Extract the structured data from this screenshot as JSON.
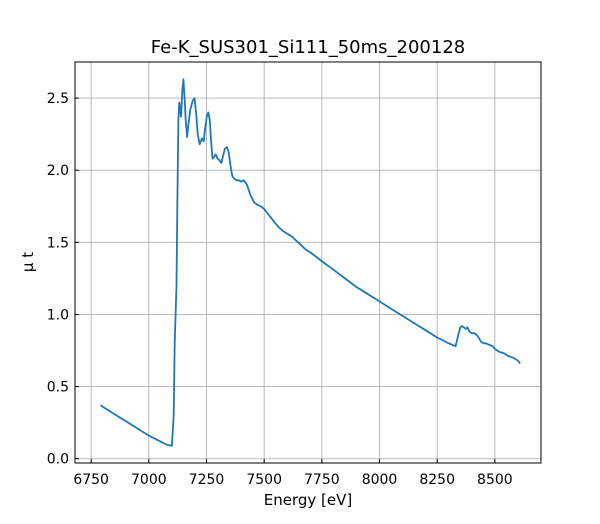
{
  "chart_data": {
    "type": "line",
    "title": "Fe-K_SUS301_Si111_50ms_200128",
    "xlabel": "Energy [eV]",
    "ylabel": "μ t",
    "xlim": [
      6680,
      8700
    ],
    "ylim": [
      -0.03,
      2.75
    ],
    "xticks": [
      6750,
      7000,
      7250,
      7500,
      7750,
      8000,
      8250,
      8500
    ],
    "yticks": [
      0.0,
      0.5,
      1.0,
      1.5,
      2.0,
      2.5
    ],
    "xtick_labels": [
      "6750",
      "7000",
      "7250",
      "7500",
      "7750",
      "8000",
      "8250",
      "8500"
    ],
    "ytick_labels": [
      "0.0",
      "0.5",
      "1.0",
      "1.5",
      "2.0",
      "2.5"
    ],
    "grid": true,
    "tick_direction": "in",
    "series": [
      {
        "color": "#1f77b4",
        "x": [
          6790,
          6850,
          6900,
          6950,
          7000,
          7050,
          7080,
          7100,
          7108,
          7112,
          7116,
          7120,
          7124,
          7128,
          7132,
          7136,
          7140,
          7145,
          7150,
          7155,
          7160,
          7166,
          7172,
          7180,
          7190,
          7198,
          7205,
          7212,
          7220,
          7230,
          7238,
          7245,
          7252,
          7258,
          7264,
          7270,
          7276,
          7282,
          7290,
          7298,
          7306,
          7314,
          7322,
          7330,
          7338,
          7346,
          7354,
          7362,
          7370,
          7380,
          7390,
          7400,
          7412,
          7425,
          7440,
          7455,
          7470,
          7485,
          7500,
          7520,
          7540,
          7560,
          7580,
          7600,
          7620,
          7640,
          7660,
          7680,
          7700,
          7750,
          7800,
          7850,
          7900,
          7950,
          8000,
          8050,
          8100,
          8150,
          8200,
          8250,
          8300,
          8330,
          8340,
          8350,
          8358,
          8366,
          8374,
          8382,
          8390,
          8400,
          8410,
          8420,
          8430,
          8440,
          8450,
          8460,
          8475,
          8490,
          8500,
          8510,
          8520,
          8540,
          8560,
          8580,
          8600,
          8610
        ],
        "y": [
          0.37,
          0.31,
          0.26,
          0.21,
          0.16,
          0.12,
          0.095,
          0.09,
          0.3,
          0.8,
          1.0,
          1.2,
          1.8,
          2.35,
          2.47,
          2.42,
          2.37,
          2.55,
          2.63,
          2.5,
          2.35,
          2.23,
          2.32,
          2.42,
          2.48,
          2.5,
          2.4,
          2.25,
          2.18,
          2.22,
          2.2,
          2.3,
          2.38,
          2.4,
          2.35,
          2.2,
          2.08,
          2.09,
          2.11,
          2.08,
          2.07,
          2.05,
          2.1,
          2.15,
          2.16,
          2.13,
          2.03,
          1.96,
          1.94,
          1.93,
          1.93,
          1.92,
          1.93,
          1.9,
          1.83,
          1.78,
          1.76,
          1.75,
          1.73,
          1.69,
          1.65,
          1.61,
          1.58,
          1.56,
          1.54,
          1.51,
          1.48,
          1.45,
          1.43,
          1.37,
          1.31,
          1.25,
          1.19,
          1.14,
          1.09,
          1.04,
          0.99,
          0.94,
          0.89,
          0.84,
          0.8,
          0.78,
          0.85,
          0.91,
          0.92,
          0.91,
          0.9,
          0.91,
          0.88,
          0.87,
          0.87,
          0.86,
          0.84,
          0.81,
          0.8,
          0.8,
          0.79,
          0.78,
          0.76,
          0.75,
          0.74,
          0.73,
          0.71,
          0.7,
          0.68,
          0.66
        ]
      }
    ]
  }
}
